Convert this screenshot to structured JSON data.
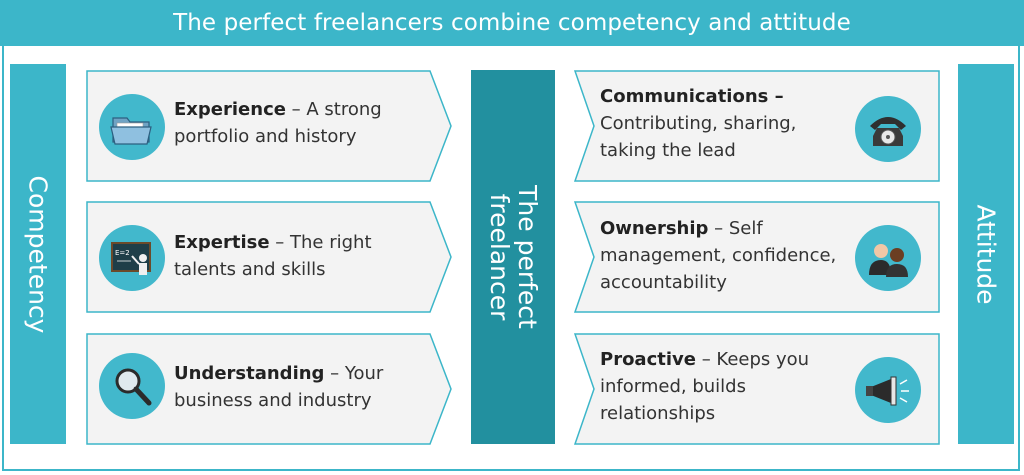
{
  "title": "The perfect freelancers combine competency and attitude",
  "left_label": "Competency",
  "right_label": "Attitude",
  "center_label": [
    "The perfect",
    "freelancer"
  ],
  "left_cards": [
    {
      "bold": "Experience",
      "rest": " – A strong portfolio and history",
      "icon": "folder-icon"
    },
    {
      "bold": "Expertise",
      "rest": " – The right talents and skills",
      "icon": "teacher-blackboard-icon"
    },
    {
      "bold": "Understanding",
      "rest": "  – Your business and industry",
      "icon": "magnifier-icon"
    }
  ],
  "right_cards": [
    {
      "bold": "Communications –",
      "rest": " Contributing, sharing, taking the lead",
      "icon": "telephone-icon"
    },
    {
      "bold": "Ownership",
      "rest": " – Self management, confidence, accountability",
      "icon": "people-icon"
    },
    {
      "bold": "Proactive",
      "rest": " – Keeps you informed, builds relationships",
      "icon": "megaphone-icon"
    }
  ],
  "colors": {
    "accent": "#3cb6c9",
    "center": "#22909f",
    "card_fill": "#f3f3f3",
    "card_border": "#3cb6c9"
  }
}
